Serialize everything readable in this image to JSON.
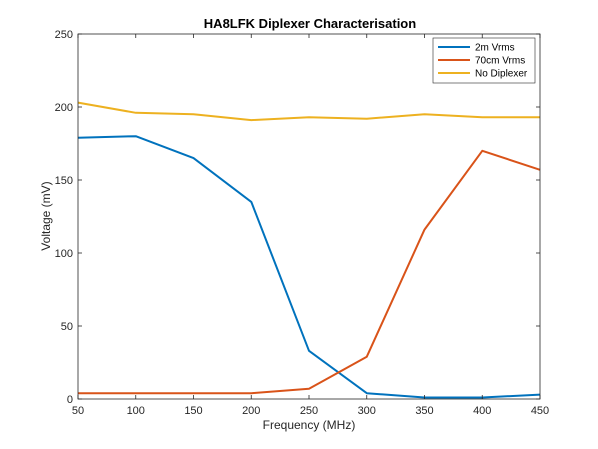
{
  "chart_data": {
    "type": "line",
    "title": "HA8LFK Diplexer Characterisation",
    "xlabel": "Frequency (MHz)",
    "ylabel": "Voltage (mV)",
    "xlim": [
      50,
      450
    ],
    "ylim": [
      0,
      250
    ],
    "xticks": [
      50,
      100,
      150,
      200,
      250,
      300,
      350,
      400,
      450
    ],
    "yticks": [
      0,
      50,
      100,
      150,
      200,
      250
    ],
    "x": [
      50,
      100,
      150,
      200,
      250,
      300,
      350,
      400,
      450
    ],
    "grid": false,
    "legend_position": "top-right",
    "series": [
      {
        "name": "2m Vrms",
        "color": "#0072BD",
        "values": [
          179,
          180,
          165,
          135,
          33,
          4,
          1,
          1,
          3
        ]
      },
      {
        "name": "70cm Vrms",
        "color": "#D95319",
        "values": [
          4,
          4,
          4,
          4,
          7,
          29,
          116,
          170,
          157
        ]
      },
      {
        "name": "No Diplexer",
        "color": "#EDB120",
        "values": [
          203,
          196,
          195,
          191,
          193,
          192,
          195,
          193,
          193
        ]
      }
    ]
  }
}
